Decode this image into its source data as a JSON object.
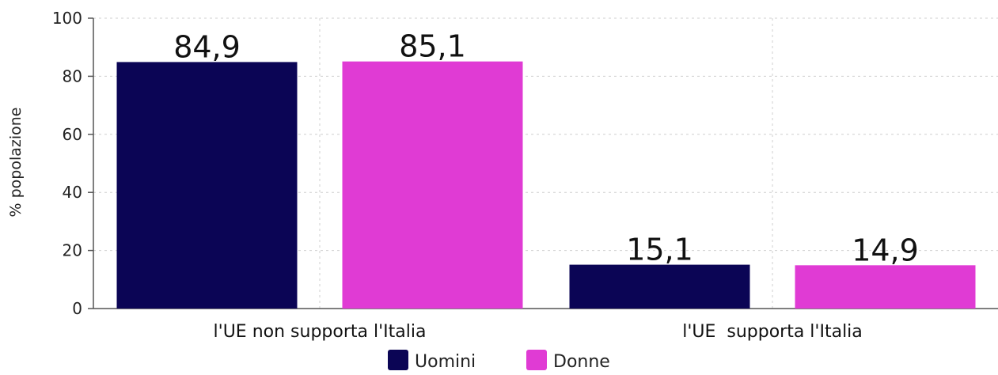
{
  "chart_data": {
    "type": "bar",
    "title": "",
    "xlabel": "",
    "ylabel": "% popolazione",
    "ylim": [
      0,
      100
    ],
    "yticks": [
      0,
      20,
      40,
      60,
      80,
      100
    ],
    "categories": [
      "l'UE non supporta l'Italia",
      "l'UE  supporta l'Italia"
    ],
    "series": [
      {
        "name": "Uomini",
        "values": [
          84.9,
          15.1
        ],
        "labels": [
          "84,9",
          "15,1"
        ],
        "color": "#0b0555"
      },
      {
        "name": "Donne",
        "values": [
          85.1,
          14.9
        ],
        "labels": [
          "85,1",
          "14,9"
        ],
        "color": "#e03bd4"
      }
    ],
    "grid": true,
    "legend": "bottom-center"
  }
}
